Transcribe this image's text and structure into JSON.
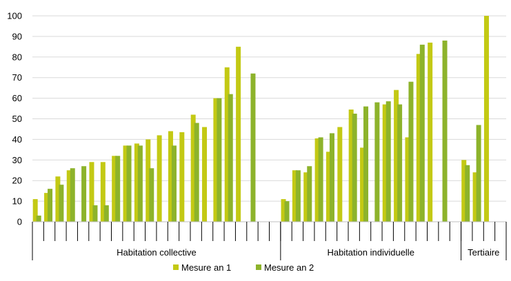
{
  "chart_data": {
    "type": "bar",
    "ylim": [
      0,
      100
    ],
    "yticks": [
      "0",
      "10",
      "20",
      "30",
      "40",
      "50",
      "60",
      "70",
      "80",
      "90",
      "100"
    ],
    "grid": true,
    "legend_position": "bottom",
    "groups": [
      {
        "label": "Habitation collective",
        "start": 0,
        "end": 21
      },
      {
        "label": "Habitation individuelle",
        "start": 22,
        "end": 37
      },
      {
        "label": "Tertiaire",
        "start": 38,
        "end": 41
      }
    ],
    "series": [
      {
        "name": "Mesure an 1",
        "color": "#c3c914",
        "values": [
          11,
          14,
          22,
          25,
          null,
          29,
          29,
          32,
          37,
          38,
          40,
          42,
          44,
          43.5,
          52,
          46,
          60,
          75,
          85,
          null,
          null,
          null,
          11,
          25,
          24,
          40.5,
          34,
          46,
          54.5,
          36,
          null,
          57,
          64,
          41,
          81.5,
          87,
          null,
          null,
          30,
          24,
          100,
          null
        ]
      },
      {
        "name": "Mesure an 2",
        "color": "#8db32b",
        "values": [
          3,
          16,
          18,
          26,
          27,
          8,
          8,
          32,
          37,
          37,
          26,
          null,
          37,
          null,
          48,
          null,
          60,
          62,
          null,
          72,
          null,
          null,
          10,
          25,
          27,
          41,
          43,
          null,
          52.5,
          56,
          58,
          58.5,
          57,
          68,
          86,
          null,
          88,
          null,
          27.5,
          47,
          null,
          null
        ]
      }
    ],
    "gap_slots": [
      21,
      37,
      41
    ]
  },
  "legend": {
    "items": [
      {
        "label": "Mesure an 1",
        "color": "#c3c914"
      },
      {
        "label": "Mesure an 2",
        "color": "#8db32b"
      }
    ]
  }
}
